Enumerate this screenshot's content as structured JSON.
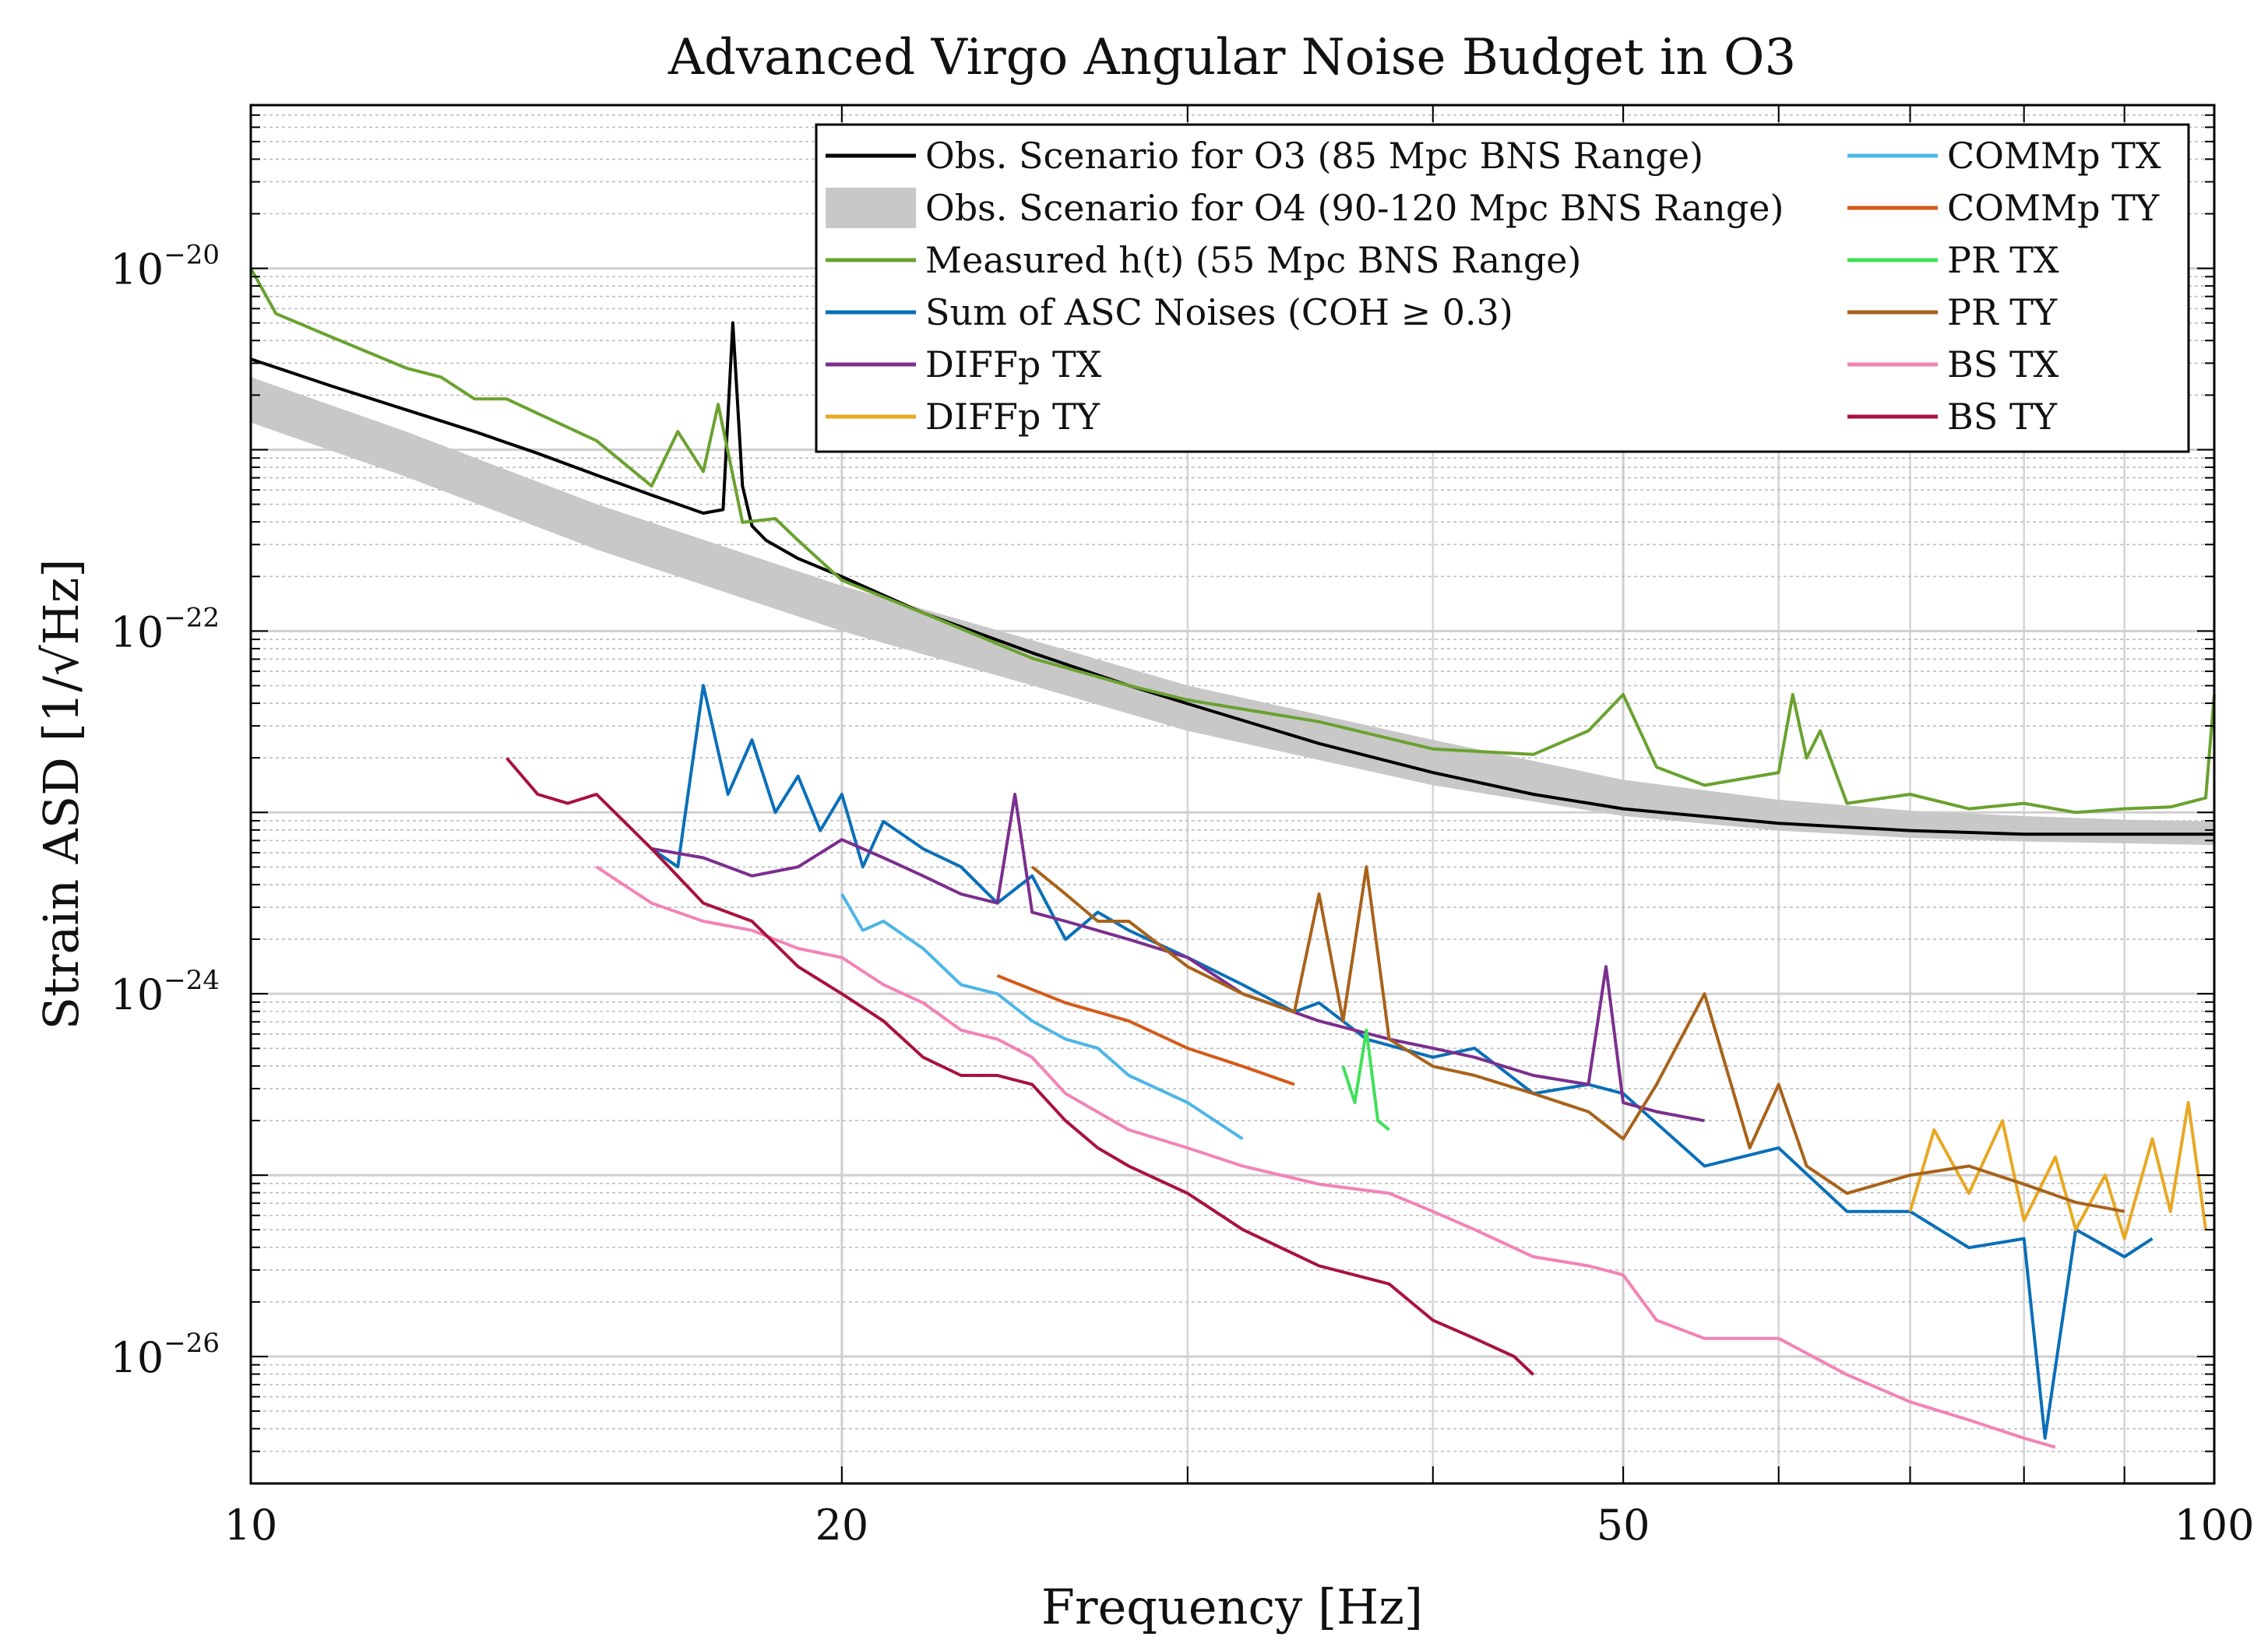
{
  "chart_data": {
    "type": "line",
    "title": "Advanced Virgo Angular Noise Budget in O3",
    "xlabel": "Frequency [Hz]",
    "ylabel": "Strain ASD [1/√Hz]",
    "x_scale": "log",
    "y_scale": "log",
    "xlim": [
      10,
      100
    ],
    "ylim_exp": [
      -26.7,
      -19.1
    ],
    "x_ticks": [
      {
        "value": 10,
        "label": "10"
      },
      {
        "value": 20,
        "label": "20"
      },
      {
        "value": 50,
        "label": "50"
      },
      {
        "value": 100,
        "label": "100"
      }
    ],
    "y_ticks": [
      {
        "exp": -20,
        "base": "10",
        "sup": "−20"
      },
      {
        "exp": -22,
        "base": "10",
        "sup": "−22"
      },
      {
        "exp": -24,
        "base": "10",
        "sup": "−24"
      },
      {
        "exp": -26,
        "base": "10",
        "sup": "−26"
      }
    ],
    "grid": true,
    "legend_position": "top-right",
    "band": {
      "name": "Obs. Scenario for O4 (90-120 Mpc BNS Range)",
      "color": "#c8c8c8",
      "x": [
        10,
        12,
        15,
        20,
        25,
        30,
        40,
        50,
        60,
        70,
        80,
        90,
        100
      ],
      "upper_exp": [
        -20.6,
        -20.9,
        -21.3,
        -21.75,
        -22.05,
        -22.3,
        -22.6,
        -22.82,
        -22.93,
        -22.99,
        -23.02,
        -23.04,
        -23.05
      ],
      "lower_exp": [
        -20.85,
        -21.15,
        -21.55,
        -22.0,
        -22.3,
        -22.55,
        -22.85,
        -23.02,
        -23.1,
        -23.14,
        -23.16,
        -23.17,
        -23.18
      ]
    },
    "series": [
      {
        "name": "Obs. Scenario for O3 (85 Mpc BNS Range)",
        "color": "#000000",
        "x": [
          10,
          11,
          12,
          13,
          14,
          15,
          16,
          17,
          17.4,
          17.6,
          17.8,
          18.0,
          18.3,
          19,
          20,
          22,
          25,
          28,
          30,
          35,
          40,
          45,
          50,
          60,
          70,
          80,
          90,
          100
        ],
        "y_exp": [
          -20.5,
          -20.65,
          -20.78,
          -20.9,
          -21.02,
          -21.14,
          -21.25,
          -21.35,
          -21.33,
          -20.3,
          -21.2,
          -21.42,
          -21.5,
          -21.6,
          -21.7,
          -21.9,
          -22.12,
          -22.3,
          -22.4,
          -22.62,
          -22.78,
          -22.9,
          -22.98,
          -23.06,
          -23.1,
          -23.12,
          -23.12,
          -23.12
        ]
      },
      {
        "name": "Measured h(t) (55 Mpc BNS Range)",
        "color": "#6aa12f",
        "x": [
          10,
          10.3,
          11,
          12,
          12.5,
          13,
          13.5,
          14,
          15,
          16,
          16.5,
          17,
          17.3,
          17.8,
          18.5,
          19,
          20,
          22,
          25,
          28,
          30,
          35,
          40,
          45,
          48,
          50,
          52,
          55,
          60,
          61,
          62,
          63,
          65,
          70,
          75,
          80,
          85,
          90,
          95,
          99,
          100
        ],
        "y_exp": [
          -20.0,
          -20.25,
          -20.38,
          -20.55,
          -20.6,
          -20.72,
          -20.72,
          -20.8,
          -20.95,
          -21.2,
          -20.9,
          -21.12,
          -20.75,
          -21.4,
          -21.38,
          -21.5,
          -21.72,
          -21.9,
          -22.15,
          -22.3,
          -22.38,
          -22.5,
          -22.65,
          -22.68,
          -22.55,
          -22.35,
          -22.75,
          -22.85,
          -22.78,
          -22.35,
          -22.7,
          -22.55,
          -22.95,
          -22.9,
          -22.98,
          -22.95,
          -23.0,
          -22.98,
          -22.97,
          -22.92,
          -22.35
        ]
      },
      {
        "name": "Sum of ASC Noises (COH ≥ 0.3)",
        "color": "#0a6fb8",
        "x": [
          16,
          16.5,
          17,
          17.5,
          18,
          18.5,
          19,
          19.5,
          20,
          20.5,
          21,
          22,
          23,
          24,
          25,
          26,
          27,
          28,
          30,
          32,
          34,
          35,
          37,
          40,
          42,
          45,
          48,
          50,
          55,
          60,
          65,
          70,
          75,
          80,
          82,
          85,
          90,
          93
        ],
        "y_exp": [
          -23.2,
          -23.3,
          -22.3,
          -22.9,
          -22.6,
          -23.0,
          -22.8,
          -23.1,
          -22.9,
          -23.3,
          -23.05,
          -23.2,
          -23.3,
          -23.5,
          -23.35,
          -23.7,
          -23.55,
          -23.65,
          -23.8,
          -23.95,
          -24.1,
          -24.05,
          -24.25,
          -24.35,
          -24.3,
          -24.55,
          -24.5,
          -24.55,
          -24.95,
          -24.85,
          -25.2,
          -25.2,
          -25.4,
          -25.35,
          -26.45,
          -25.3,
          -25.45,
          -25.35
        ]
      },
      {
        "name": "DIFFp TX",
        "color": "#7b2f8e",
        "x": [
          16,
          17,
          18,
          19,
          20,
          21,
          22,
          23,
          24,
          24.5,
          25,
          26,
          28,
          30,
          32,
          35,
          38,
          40,
          42,
          45,
          48,
          49,
          50,
          52,
          55
        ],
        "y_exp": [
          -23.2,
          -23.25,
          -23.35,
          -23.3,
          -23.15,
          -23.25,
          -23.35,
          -23.45,
          -23.5,
          -22.9,
          -23.55,
          -23.6,
          -23.7,
          -23.8,
          -24.0,
          -24.15,
          -24.25,
          -24.3,
          -24.35,
          -24.45,
          -24.5,
          -23.85,
          -24.6,
          -24.65,
          -24.7
        ]
      },
      {
        "name": "DIFFp TY",
        "color": "#e8a823",
        "x": [
          70,
          72,
          75,
          78,
          80,
          83,
          85,
          88,
          90,
          93,
          95,
          97,
          99
        ],
        "y_exp": [
          -25.2,
          -24.75,
          -25.1,
          -24.7,
          -25.25,
          -24.9,
          -25.3,
          -25.0,
          -25.35,
          -24.8,
          -25.2,
          -24.6,
          -25.3
        ]
      },
      {
        "name": "COMMp TX",
        "color": "#4cb6e6",
        "x": [
          20,
          20.5,
          21,
          22,
          23,
          24,
          25,
          26,
          27,
          28,
          30,
          32
        ],
        "y_exp": [
          -23.45,
          -23.65,
          -23.6,
          -23.75,
          -23.95,
          -24.0,
          -24.15,
          -24.25,
          -24.3,
          -24.45,
          -24.6,
          -24.8
        ]
      },
      {
        "name": "COMMp TY",
        "color": "#d45a1a",
        "x": [
          24,
          26,
          28,
          30,
          32,
          34
        ],
        "y_exp": [
          -23.9,
          -24.05,
          -24.15,
          -24.3,
          -24.4,
          -24.5
        ]
      },
      {
        "name": "PR TX",
        "color": "#3fe05a",
        "x": [
          36,
          36.5,
          37,
          37.5,
          38
        ],
        "y_exp": [
          -24.4,
          -24.6,
          -24.2,
          -24.7,
          -24.75
        ]
      },
      {
        "name": "PR TY",
        "color": "#a8621a",
        "x": [
          25,
          26,
          27,
          28,
          30,
          32,
          34,
          35,
          36,
          37,
          38,
          40,
          42,
          45,
          48,
          50,
          52,
          55,
          58,
          60,
          62,
          65,
          70,
          75,
          80,
          85,
          90
        ],
        "y_exp": [
          -23.3,
          -23.45,
          -23.6,
          -23.6,
          -23.85,
          -24.0,
          -24.1,
          -23.45,
          -24.15,
          -23.3,
          -24.25,
          -24.4,
          -24.45,
          -24.55,
          -24.65,
          -24.8,
          -24.5,
          -24.0,
          -24.85,
          -24.5,
          -24.95,
          -25.1,
          -25.0,
          -24.95,
          -25.05,
          -25.15,
          -25.2
        ]
      },
      {
        "name": "BS TX",
        "color": "#f283b6",
        "x": [
          15,
          16,
          17,
          18,
          19,
          20,
          21,
          22,
          23,
          24,
          25,
          26,
          28,
          30,
          32,
          35,
          38,
          40,
          42,
          45,
          48,
          50,
          52,
          55,
          60,
          65,
          70,
          75,
          80,
          83
        ],
        "y_exp": [
          -23.3,
          -23.5,
          -23.6,
          -23.65,
          -23.75,
          -23.8,
          -23.95,
          -24.05,
          -24.2,
          -24.25,
          -24.35,
          -24.55,
          -24.75,
          -24.85,
          -24.95,
          -25.05,
          -25.1,
          -25.2,
          -25.3,
          -25.45,
          -25.5,
          -25.55,
          -25.8,
          -25.9,
          -25.9,
          -26.1,
          -26.25,
          -26.35,
          -26.45,
          -26.5
        ]
      },
      {
        "name": "BS TY",
        "color": "#a8123c",
        "x": [
          13.5,
          14,
          14.5,
          15,
          16,
          17,
          18,
          19,
          20,
          21,
          22,
          23,
          24,
          25,
          26,
          27,
          28,
          30,
          32,
          35,
          38,
          40,
          42,
          44,
          45
        ],
        "y_exp": [
          -22.7,
          -22.9,
          -22.95,
          -22.9,
          -23.2,
          -23.5,
          -23.6,
          -23.85,
          -24.0,
          -24.15,
          -24.35,
          -24.45,
          -24.45,
          -24.5,
          -24.7,
          -24.85,
          -24.95,
          -25.1,
          -25.3,
          -25.5,
          -25.6,
          -25.8,
          -25.9,
          -26.0,
          -26.1
        ]
      }
    ]
  }
}
